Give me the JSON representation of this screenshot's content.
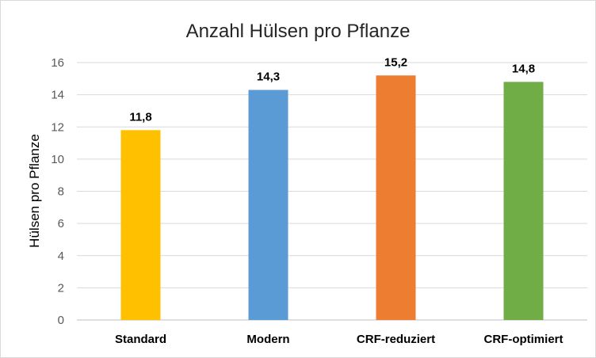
{
  "chart_data": {
    "type": "bar",
    "title": "Anzahl Hülsen pro Pflanze",
    "xlabel": "",
    "ylabel": "Hülsen pro Pflanze",
    "categories": [
      "Standard",
      "Modern",
      "CRF-reduziert",
      "CRF-optimiert"
    ],
    "values": [
      11.8,
      14.3,
      15.2,
      14.8
    ],
    "data_labels": [
      "11,8",
      "14,3",
      "15,2",
      "14,8"
    ],
    "ylim": [
      0,
      16
    ],
    "yticks": [
      0,
      2,
      4,
      6,
      8,
      10,
      12,
      14,
      16
    ],
    "grid": true,
    "legend": "none",
    "colors": [
      "#ffc000",
      "#5b9bd5",
      "#ed7d31",
      "#70ad47"
    ]
  }
}
